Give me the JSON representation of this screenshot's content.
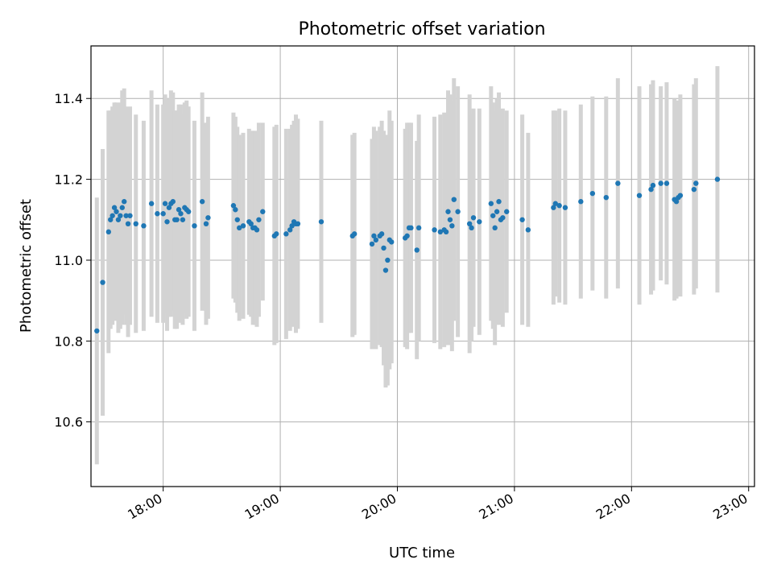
{
  "chart_data": {
    "type": "scatter",
    "title": "Photometric offset variation",
    "xlabel": "UTC time",
    "ylabel": "Photometric offset",
    "xlim": [
      "17:23",
      "23:03"
    ],
    "ylim": [
      10.44,
      11.53
    ],
    "x_ticks": [
      "18:00",
      "19:00",
      "20:00",
      "21:00",
      "22:00",
      "23:00"
    ],
    "y_ticks": [
      "10.6",
      "10.8",
      "11.0",
      "11.2",
      "11.4"
    ],
    "grid": true,
    "error_bar_color": "#d3d3d3",
    "point_color": "#1f77b4",
    "series": [
      {
        "x": [
          "17:26",
          "17:29",
          "17:32",
          "17:33",
          "17:34",
          "17:35",
          "17:36",
          "17:37",
          "17:38",
          "17:39",
          "17:40",
          "17:41",
          "17:42",
          "17:43",
          "17:46",
          "17:50",
          "17:54",
          "17:57",
          "18:00",
          "18:01",
          "18:02",
          "18:03",
          "18:04",
          "18:05",
          "18:06",
          "18:07",
          "18:08",
          "18:09",
          "18:10",
          "18:11",
          "18:12",
          "18:13",
          "18:16",
          "18:20",
          "18:22",
          "18:23",
          "18:36",
          "18:37",
          "18:38",
          "18:39",
          "18:41",
          "18:44",
          "18:45",
          "18:46",
          "18:47",
          "18:48",
          "18:49",
          "18:51",
          "18:57",
          "18:58",
          "19:03",
          "19:05",
          "19:06",
          "19:07",
          "19:08",
          "19:09",
          "19:21",
          "19:37",
          "19:38",
          "19:47",
          "19:48",
          "19:49",
          "19:51",
          "19:52",
          "19:53",
          "19:54",
          "19:55",
          "19:56",
          "19:57",
          "20:04",
          "20:05",
          "20:06",
          "20:07",
          "20:10",
          "20:11",
          "20:19",
          "20:22",
          "20:24",
          "20:25",
          "20:26",
          "20:27",
          "20:28",
          "20:29",
          "20:31",
          "20:37",
          "20:38",
          "20:39",
          "20:42",
          "20:48",
          "20:49",
          "20:50",
          "20:51",
          "20:52",
          "20:53",
          "20:54",
          "20:56",
          "21:04",
          "21:07",
          "21:20",
          "21:21",
          "21:23",
          "21:26",
          "21:34",
          "21:40",
          "21:47",
          "21:53",
          "22:04",
          "22:10",
          "22:11",
          "22:15",
          "22:18",
          "22:22",
          "22:23",
          "22:24",
          "22:25",
          "22:32",
          "22:33",
          "22:44"
        ],
        "y": [
          10.825,
          10.945,
          11.07,
          11.1,
          11.11,
          11.13,
          11.12,
          11.1,
          11.11,
          11.13,
          11.145,
          11.11,
          11.09,
          11.11,
          11.09,
          11.085,
          11.14,
          11.115,
          11.115,
          11.14,
          11.095,
          11.13,
          11.14,
          11.145,
          11.1,
          11.1,
          11.125,
          11.115,
          11.1,
          11.13,
          11.125,
          11.12,
          11.085,
          11.145,
          11.09,
          11.105,
          11.135,
          11.125,
          11.1,
          11.08,
          11.085,
          11.095,
          11.09,
          11.08,
          11.08,
          11.075,
          11.1,
          11.12,
          11.06,
          11.065,
          11.065,
          11.075,
          11.085,
          11.095,
          11.09,
          11.09,
          11.095,
          11.06,
          11.065,
          11.04,
          11.06,
          11.05,
          11.06,
          11.065,
          11.03,
          10.975,
          11.0,
          11.05,
          11.045,
          11.055,
          11.06,
          11.08,
          11.08,
          11.025,
          11.08,
          11.075,
          11.07,
          11.075,
          11.07,
          11.12,
          11.1,
          11.085,
          11.15,
          11.12,
          11.09,
          11.08,
          11.105,
          11.095,
          11.14,
          11.11,
          11.08,
          11.12,
          11.145,
          11.1,
          11.105,
          11.12,
          11.1,
          11.075,
          11.13,
          11.14,
          11.135,
          11.13,
          11.145,
          11.165,
          11.155,
          11.19,
          11.16,
          11.175,
          11.185,
          11.19,
          11.19,
          11.15,
          11.145,
          11.155,
          11.16,
          11.175,
          11.19,
          11.2
        ],
        "err": [
          0.33,
          0.33,
          0.3,
          0.27,
          0.27,
          0.26,
          0.27,
          0.28,
          0.28,
          0.29,
          0.28,
          0.27,
          0.28,
          0.27,
          0.27,
          0.26,
          0.28,
          0.27,
          0.27,
          0.27,
          0.27,
          0.27,
          0.28,
          0.27,
          0.27,
          0.27,
          0.26,
          0.27,
          0.26,
          0.26,
          0.27,
          0.26,
          0.26,
          0.27,
          0.25,
          0.25,
          0.23,
          0.23,
          0.23,
          0.23,
          0.23,
          0.23,
          0.23,
          0.24,
          0.24,
          0.24,
          0.24,
          0.22,
          0.27,
          0.27,
          0.26,
          0.25,
          0.25,
          0.25,
          0.27,
          0.26,
          0.25,
          0.25,
          0.25,
          0.26,
          0.27,
          0.27,
          0.27,
          0.28,
          0.29,
          0.29,
          0.31,
          0.32,
          0.3,
          0.27,
          0.28,
          0.26,
          0.26,
          0.27,
          0.28,
          0.28,
          0.29,
          0.29,
          0.28,
          0.3,
          0.31,
          0.31,
          0.3,
          0.31,
          0.32,
          0.28,
          0.27,
          0.28,
          0.29,
          0.28,
          0.29,
          0.28,
          0.27,
          0.26,
          0.27,
          0.25,
          0.26,
          0.24,
          0.24,
          0.23,
          0.24,
          0.24,
          0.24,
          0.24,
          0.25,
          0.26,
          0.27,
          0.26,
          0.26,
          0.24,
          0.25,
          0.25,
          0.24,
          0.24,
          0.25,
          0.26,
          0.26,
          0.28
        ]
      }
    ]
  }
}
